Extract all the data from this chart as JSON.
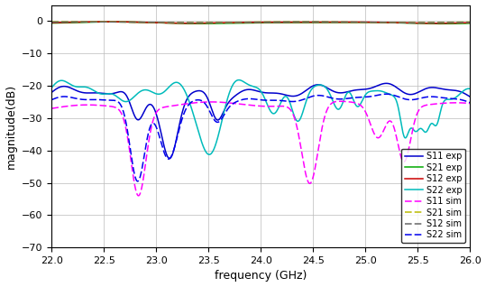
{
  "xlabel": "frequency (GHz)",
  "ylabel": "magnitude(dB)",
  "xlim": [
    22,
    26
  ],
  "ylim": [
    -70,
    5
  ],
  "yticks": [
    0,
    -10,
    -20,
    -30,
    -40,
    -50,
    -60,
    -70
  ],
  "xticks": [
    22,
    22.5,
    23,
    23.5,
    24,
    24.5,
    25,
    25.5,
    26
  ],
  "colors": {
    "S11_exp": "#0000cc",
    "S21_exp": "#00aa00",
    "S12_exp": "#cc0000",
    "S22_exp": "#00bbbb",
    "S11_sim": "#ff00ff",
    "S21_sim": "#bbbb00",
    "S12_sim": "#666666",
    "S22_sim": "#0000ee"
  }
}
